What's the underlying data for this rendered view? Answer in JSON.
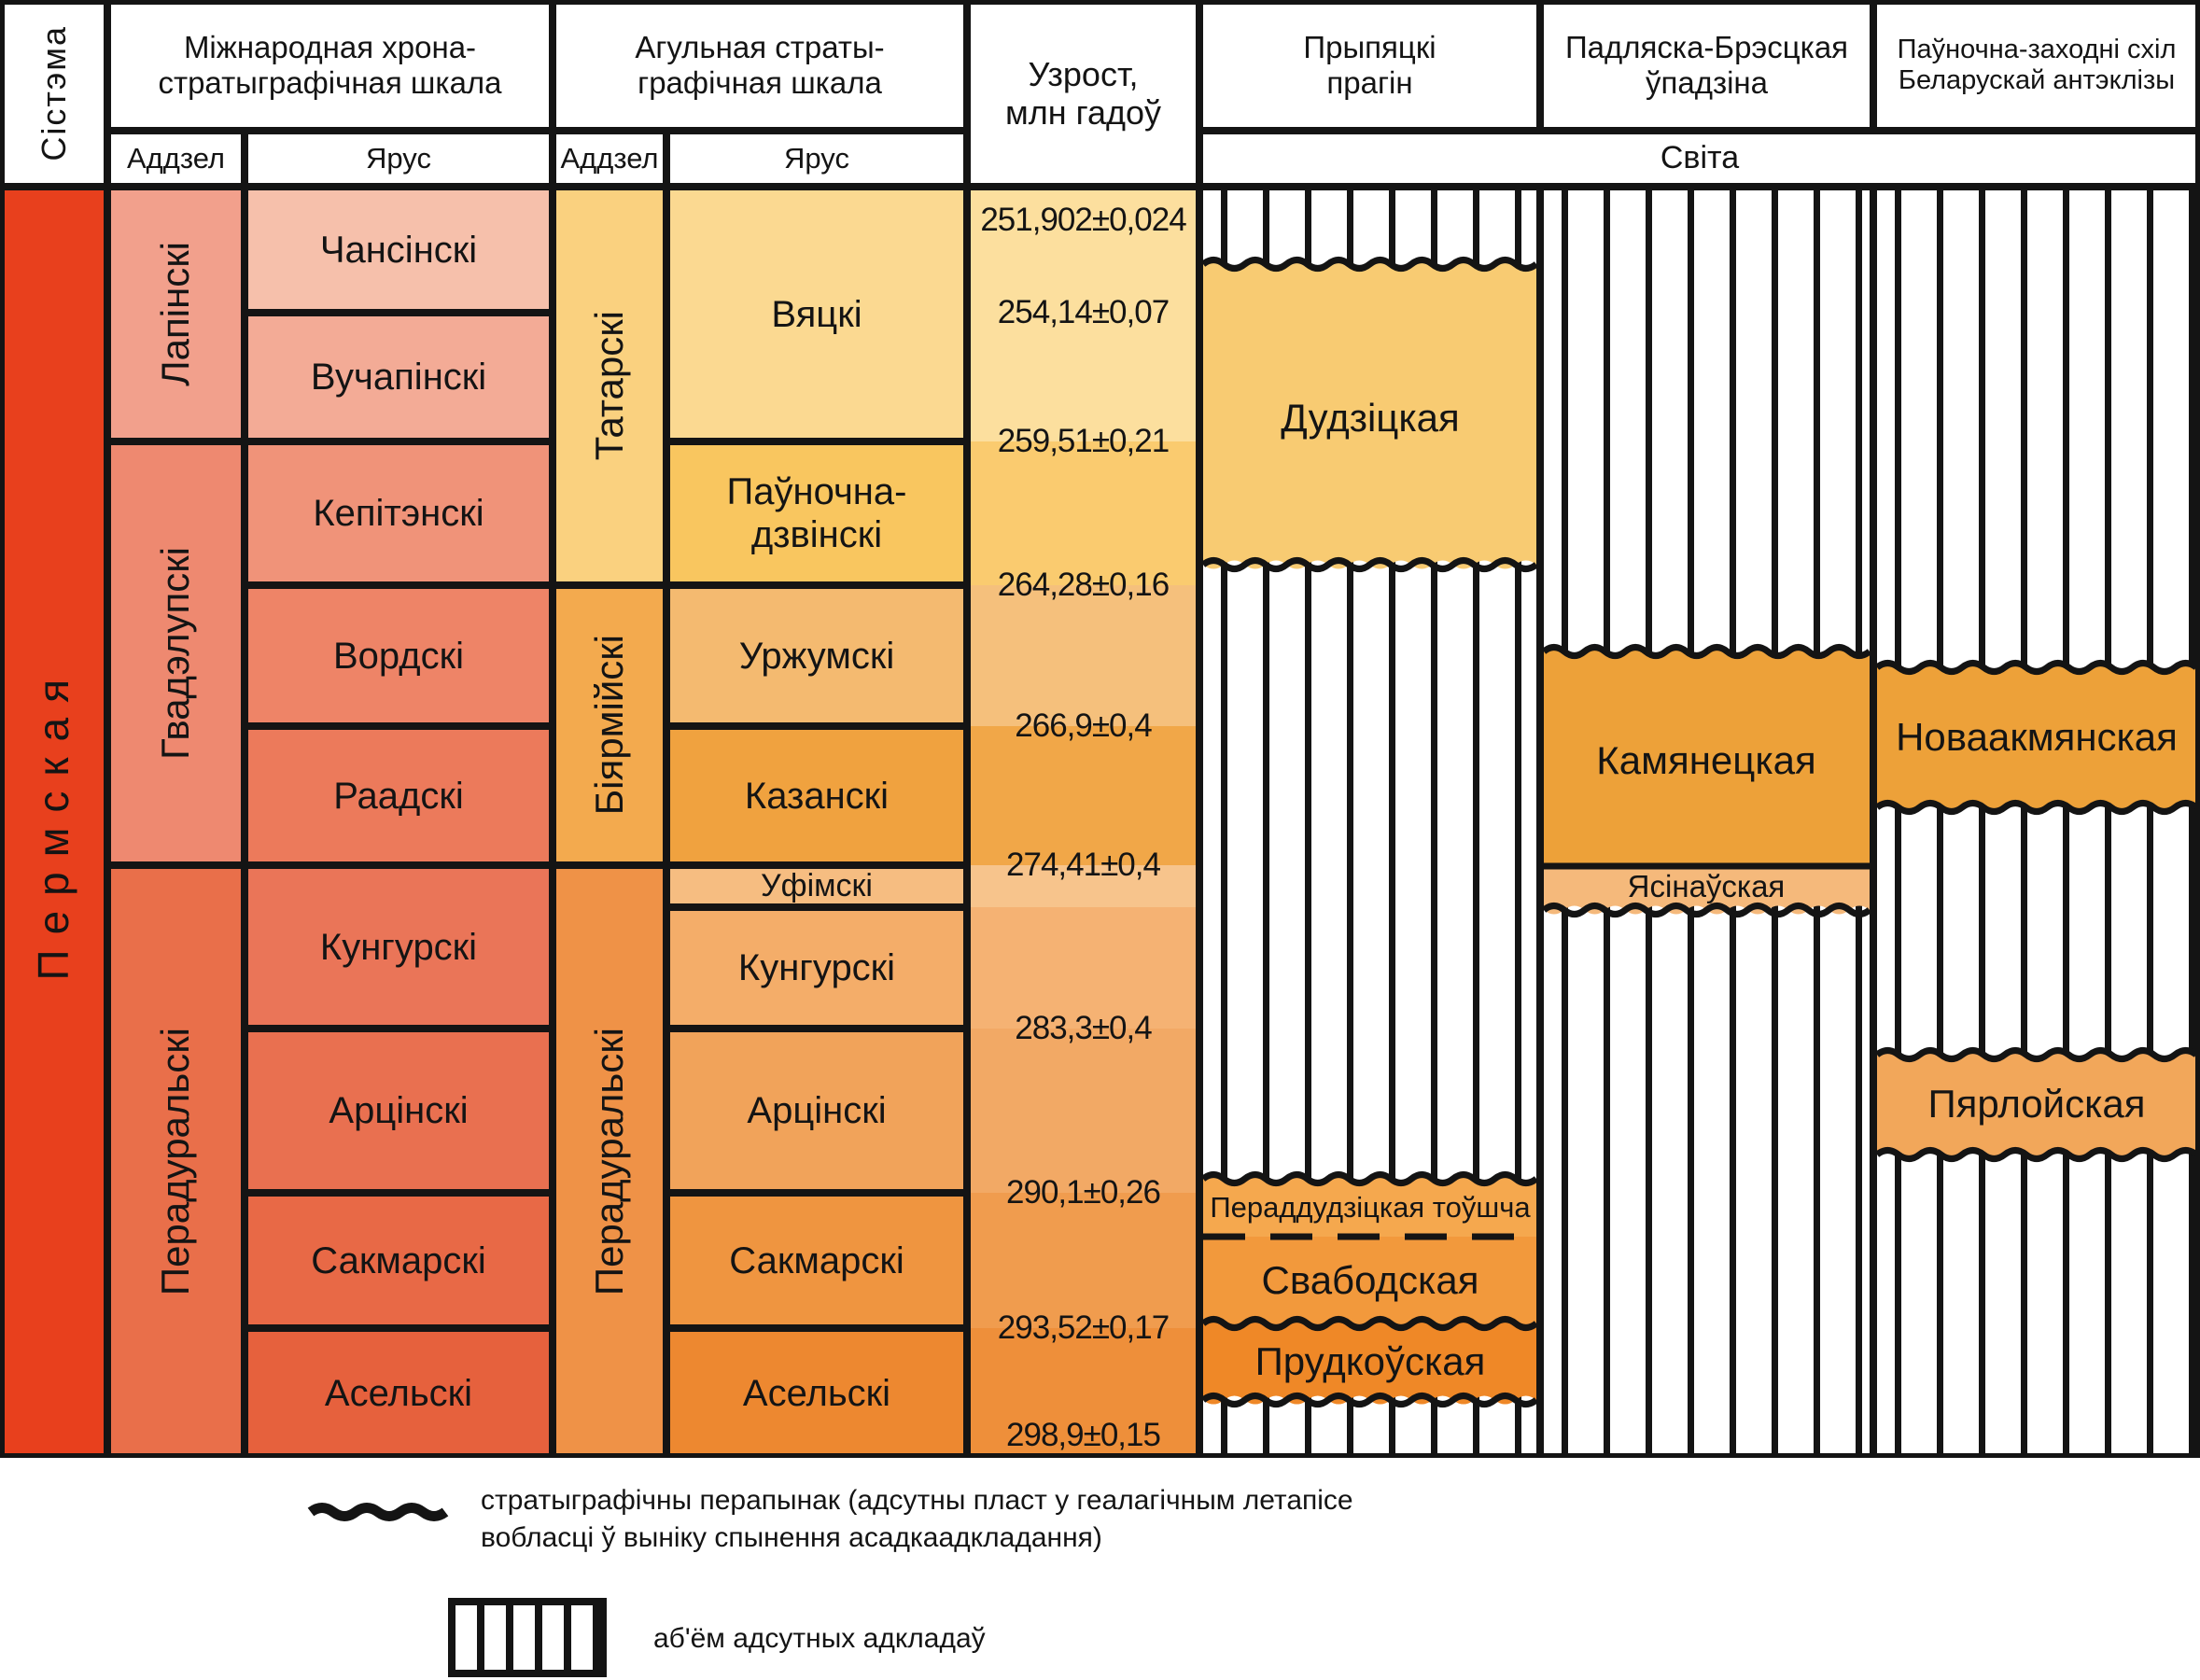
{
  "page": {
    "background": "#FFFFFF",
    "line_color": "#141414"
  },
  "headers": {
    "sistema": "Сістэма",
    "intl_scale": "Міжнародная хрона-\nстратыграфічная шкала",
    "general_scale": "Агульная страты-\nграфічная шкала",
    "age": "Узрост,\nмлн гадоў",
    "region_pripyat": "Прыпяцкі\nпрагін",
    "region_podlaska": "Падляска-Брэсцкая\nўпадзіна",
    "region_northwest": "Паўночна-заходні схіл\nБеларускай антэклізы",
    "addzel": "Аддзел",
    "yarus": "Ярус",
    "svita": "Світа"
  },
  "system": {
    "label": "Пермская",
    "color": "#E8401D"
  },
  "intl_scale": {
    "series": [
      {
        "label": "Лапінскі",
        "color": "#F2A08C"
      },
      {
        "label": "Гвадэлупскі",
        "color": "#EE8970"
      },
      {
        "label": "Перадуральскі",
        "color": "#E96F4A"
      }
    ],
    "stages": [
      {
        "label": "Чансінскі",
        "color": "#F6C0AB"
      },
      {
        "label": "Вучапінскі",
        "color": "#F3AB96"
      },
      {
        "label": "Кепітэнскі",
        "color": "#F09379"
      },
      {
        "label": "Вордскі",
        "color": "#EE8467"
      },
      {
        "label": "Раадскі",
        "color": "#EC7A5B"
      },
      {
        "label": "Кунгурскі",
        "color": "#EA7558"
      },
      {
        "label": "Арцінскі",
        "color": "#E97050"
      },
      {
        "label": "Сакмарскі",
        "color": "#E86946"
      },
      {
        "label": "Асельскі",
        "color": "#E6613D"
      }
    ]
  },
  "general_scale": {
    "series": [
      {
        "label": "Татарскі",
        "color": "#FAD17F"
      },
      {
        "label": "Біярмійскі",
        "color": "#F3AA4E"
      },
      {
        "label": "Перадуральскі",
        "color": "#EF9247"
      }
    ],
    "stages": [
      {
        "label": "Вяцкі",
        "color": "#FBD991"
      },
      {
        "label": "Паўночна-\nдзвінскі",
        "color": "#F9C65F"
      },
      {
        "label": "Уржумскі",
        "color": "#F4BA70"
      },
      {
        "label": "Казанскі",
        "color": "#F0A23F"
      },
      {
        "label": "Уфімскі",
        "color": "#F6BD81"
      },
      {
        "label": "Кунгурскі",
        "color": "#F4AD69"
      },
      {
        "label": "Арцінскі",
        "color": "#F1A35A"
      },
      {
        "label": "Сакмарскі",
        "color": "#EF9540"
      },
      {
        "label": "Асельскі",
        "color": "#ED8830"
      }
    ]
  },
  "ages": [
    "251,902±0,024",
    "254,14±0,07",
    "259,51±0,21",
    "264,28±0,16",
    "266,9±0,4",
    "274,41±0,4",
    "283,3±0,4",
    "290,1±0,26",
    "293,52±0,17",
    "298,9±0,15"
  ],
  "age_band_colors": [
    "#FCDF9E",
    "#FACB6F",
    "#F5C07C",
    "#F1A748",
    "#F7C48C",
    "#F5B273",
    "#F2A965",
    "#F09C4E",
    "#EE8F3A"
  ],
  "formations": {
    "dudzickaya": {
      "label": "Дудзіцкая",
      "color": "#F8CB72"
    },
    "peraddudzickaya": {
      "label": "Пераддудзіцкая тоўшча",
      "color": "#F5A84E"
    },
    "svabodskaya": {
      "label": "Свабодская",
      "color": "#F2993C"
    },
    "prudkouskaya": {
      "label": "Прудкоўская",
      "color": "#EF8827"
    },
    "kamyaneckaya": {
      "label": "Камянецкая",
      "color": "#EDA139"
    },
    "yasinauskaya": {
      "label": "Ясінаўская",
      "color": "#F5B97B"
    },
    "novaakmyanskaya": {
      "label": "Новаакмянская",
      "color": "#EDA139"
    },
    "pyarloiskaya": {
      "label": "Пярлойская",
      "color": "#F2A75A"
    }
  },
  "legend": {
    "gap_text": "стратыграфічны перапынак (адсутны пласт у геалагічным летапісе\nвобласці ў выніку спынення асадкаадкладання)",
    "absent_text": "аб'ём адсутных адкладаў"
  }
}
